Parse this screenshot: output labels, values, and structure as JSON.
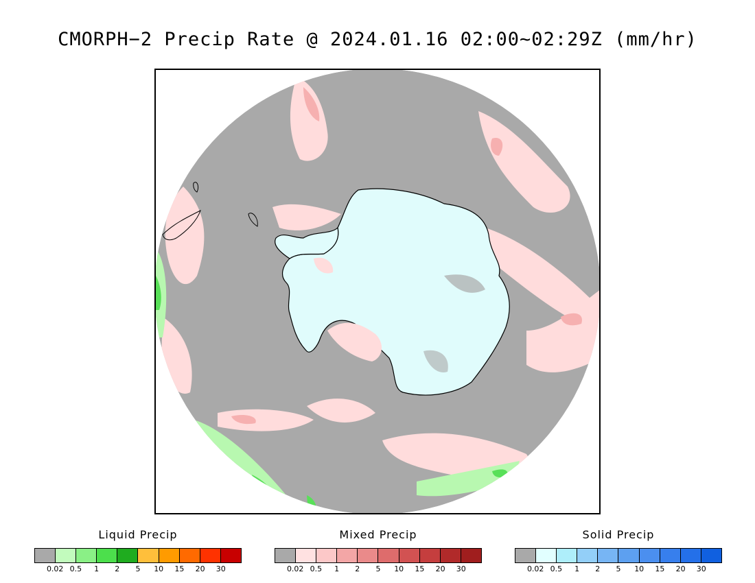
{
  "title": "CMORPH−2 Precip Rate @ 2024.01.16 02:00~02:29Z (mm/hr)",
  "map": {
    "projection": "south-polar-stereographic",
    "colors": {
      "no_precip": "#a9a9a9",
      "ice": "#e0fcfc",
      "mixed_light": "#ffdcdc",
      "mixed_mid": "#f6b0b0",
      "liquid_light": "#b8f8b0",
      "liquid_mid": "#58e058",
      "liquid_dark": "#20b020",
      "coast": "#000000"
    }
  },
  "legends": [
    {
      "title": "Liquid Precip",
      "colors": [
        "#a9a9a9",
        "#c2fbbd",
        "#8af086",
        "#4cdf4c",
        "#1fac1f",
        "#ffbf3b",
        "#ff9b00",
        "#ff6a00",
        "#ff3200",
        "#c80000"
      ],
      "ticks": [
        "0.02",
        "0.5",
        "1",
        "2",
        "5",
        "10",
        "15",
        "20",
        "30"
      ]
    },
    {
      "title": "Mixed Precip",
      "colors": [
        "#a9a9a9",
        "#ffe1e1",
        "#fcc8c8",
        "#f3a6a6",
        "#ea8a8a",
        "#de6c6c",
        "#d25252",
        "#c53e3e",
        "#b12a2a",
        "#a01e1e"
      ],
      "ticks": [
        "0.02",
        "0.5",
        "1",
        "2",
        "5",
        "10",
        "15",
        "20",
        "30"
      ]
    },
    {
      "title": "Solid Precip",
      "colors": [
        "#a9a9a9",
        "#e1ffff",
        "#aeeefa",
        "#93cff8",
        "#77b5f4",
        "#5da0f0",
        "#4b8fef",
        "#377fed",
        "#2470e9",
        "#1060e0"
      ],
      "ticks": [
        "0.02",
        "0.5",
        "1",
        "2",
        "5",
        "10",
        "15",
        "20",
        "30"
      ]
    }
  ]
}
